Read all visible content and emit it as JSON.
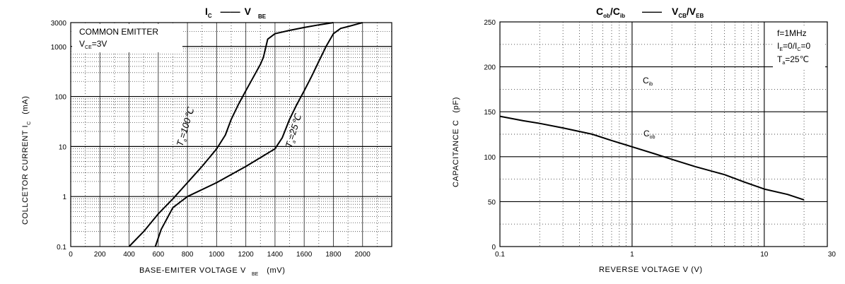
{
  "chart_data": [
    {
      "type": "line",
      "title_main": "I",
      "title_main_sub": "C",
      "title_dash": "——",
      "title_second": "V",
      "title_second_sub": "BE",
      "xlabel": "BASE-EMITER VOLTAGE V",
      "xlabel_sub": "BE",
      "xlabel_unit": "(mV)",
      "ylabel": "COLLCETOR CURRENT I",
      "ylabel_sub": "C",
      "ylabel_unit": "(mA)",
      "x_scale": "linear",
      "y_scale": "log",
      "xlim": [
        0,
        2200
      ],
      "ylim": [
        0.1,
        3000
      ],
      "grid": true,
      "x_ticks": [
        0,
        200,
        400,
        600,
        800,
        1000,
        1200,
        1400,
        1600,
        1800,
        2000
      ],
      "x_tick_labels": [
        "0",
        "200",
        "400",
        "600",
        "800",
        "1000",
        "1200",
        "1400",
        "1600",
        "1800",
        "2000"
      ],
      "y_ticks": [
        0.1,
        1,
        10,
        100,
        1000,
        3000
      ],
      "y_tick_labels": [
        "0.1",
        "1",
        "10",
        "100",
        "1000",
        "3000"
      ],
      "condition_line1": "COMMON EMITTER",
      "condition_line2_main": "V",
      "condition_line2_sub": "CE",
      "condition_line2_value": "=3V",
      "series": [
        {
          "name": "Ta=100℃",
          "x": [
            400,
            500,
            600,
            700,
            800,
            900,
            1000,
            1060,
            1100,
            1150,
            1200,
            1250,
            1300,
            1320,
            1350,
            1400,
            1500,
            1600,
            1700,
            1800
          ],
          "y": [
            0.1,
            0.2,
            0.45,
            0.9,
            1.9,
            4.0,
            9.0,
            17,
            35,
            70,
            130,
            240,
            440,
            600,
            1400,
            1800,
            2100,
            2400,
            2700,
            3000
          ]
        },
        {
          "name": "Ta=25℃",
          "x": [
            580,
            620,
            700,
            800,
            1000,
            1200,
            1400,
            1450,
            1500,
            1550,
            1600,
            1650,
            1700,
            1750,
            1800,
            1850,
            1900,
            2000
          ],
          "y": [
            0.1,
            0.22,
            0.6,
            1.0,
            1.9,
            4.0,
            9.0,
            15,
            35,
            70,
            130,
            250,
            500,
            1000,
            1800,
            2300,
            2500,
            3000
          ]
        }
      ],
      "series_labels": [
        {
          "main": "T",
          "sub": "a",
          "rest": "=100℃"
        },
        {
          "main": "T",
          "sub": "a",
          "rest": "=25℃"
        }
      ]
    },
    {
      "type": "line",
      "title_main": "C",
      "title_main_sub": "ob",
      "title_mid": "/C",
      "title_mid_sub": "ib",
      "title_dash": "——",
      "title_second": "V",
      "title_second_sub": "CB",
      "title_third": "/V",
      "title_third_sub": "EB",
      "xlabel": "REVERSE VOLTAGE V (V)",
      "ylabel": "CAPACITANCE C",
      "ylabel_unit": "(pF)",
      "x_scale": "log",
      "y_scale": "linear",
      "xlim": [
        0.1,
        30
      ],
      "ylim": [
        0,
        250
      ],
      "grid": true,
      "x_ticks": [
        0.1,
        1,
        10,
        30
      ],
      "x_tick_labels": [
        "0.1",
        "1",
        "10",
        "30"
      ],
      "y_ticks": [
        0,
        50,
        100,
        150,
        200,
        250
      ],
      "y_tick_labels": [
        "0",
        "50",
        "100",
        "150",
        "200",
        "250"
      ],
      "conditions": [
        {
          "main": "f=1MHz",
          "sub": "",
          "rest": ""
        },
        {
          "main": "I",
          "sub": "E",
          "rest": "=0/I",
          "sub2": "C",
          "rest2": "=0"
        },
        {
          "main": "T",
          "sub": "a",
          "rest": "=25℃"
        }
      ],
      "curve_labels": [
        {
          "main": "C",
          "sub": "ib",
          "x": 1.15,
          "y": 185
        },
        {
          "main": "C",
          "sub": "ob",
          "x": 1.15,
          "y": 124
        }
      ],
      "series": [
        {
          "name": "Cob",
          "x": [
            0.1,
            0.15,
            0.2,
            0.3,
            0.5,
            0.7,
            1,
            1.5,
            2,
            3,
            5,
            7,
            10,
            15,
            20
          ],
          "y": [
            145,
            140,
            137,
            132,
            125,
            118,
            111,
            103,
            97,
            89,
            80,
            72,
            64,
            58,
            52
          ]
        }
      ]
    }
  ]
}
